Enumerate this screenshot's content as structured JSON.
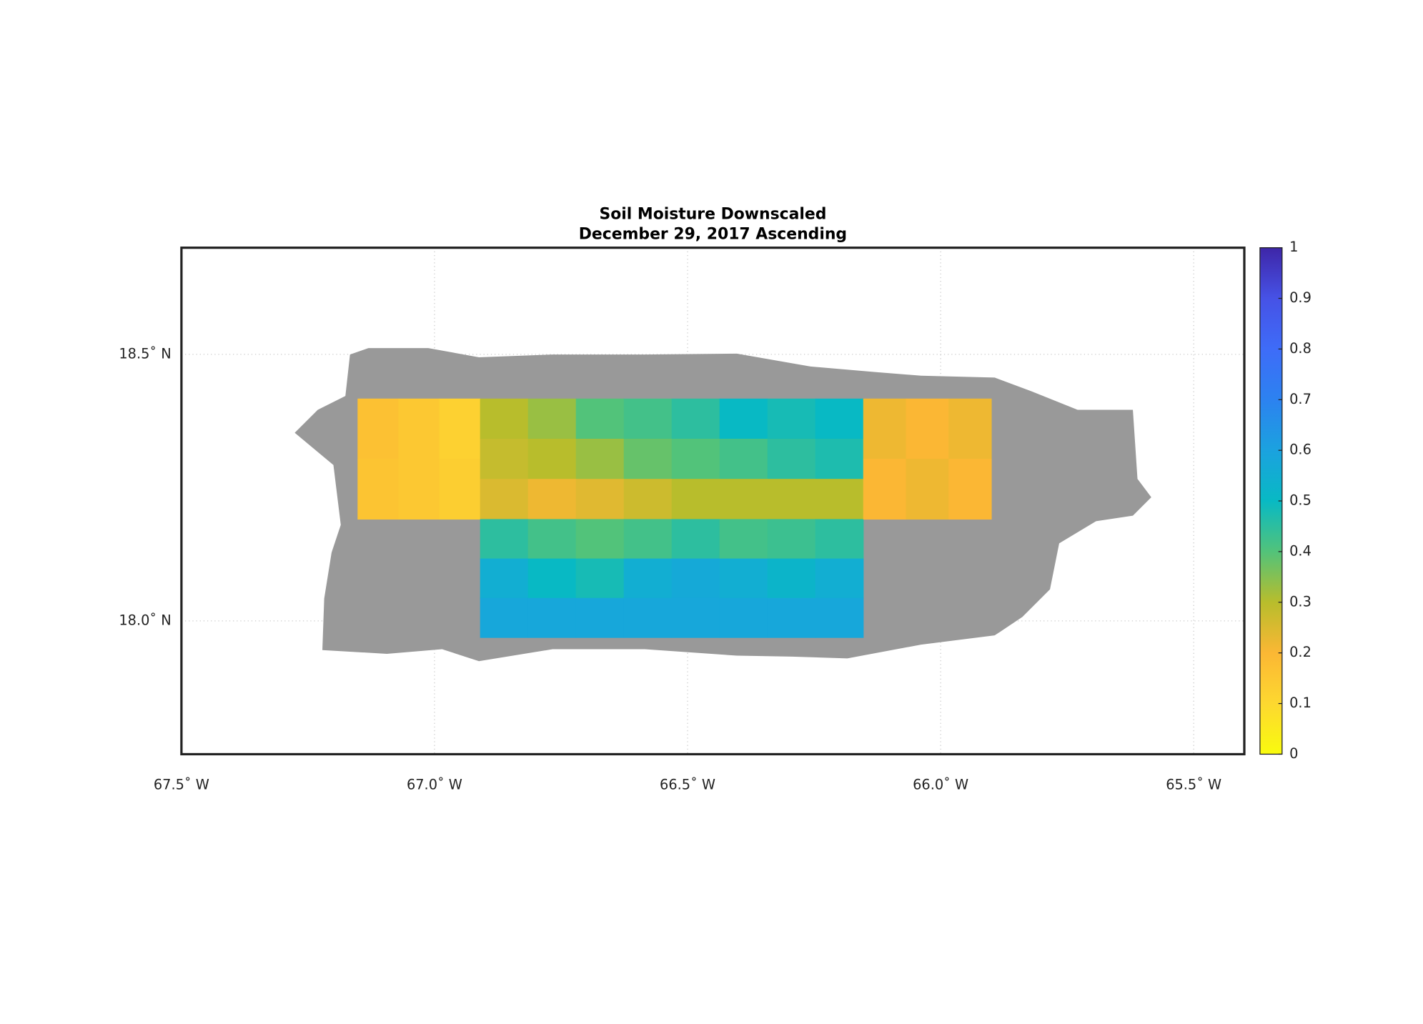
{
  "chart_data": {
    "type": "map",
    "title": "Soil Moisture Downscaled",
    "subtitle": "December 29, 2017 Ascending",
    "xlim": [
      -67.5,
      -65.4
    ],
    "ylim": [
      17.75,
      18.7
    ],
    "xticks": [
      {
        "value": -67.5,
        "label": "67.5˚ W"
      },
      {
        "value": -67.0,
        "label": "67.0˚ W"
      },
      {
        "value": -66.5,
        "label": "66.5˚ W"
      },
      {
        "value": -66.0,
        "label": "66.0˚ W"
      },
      {
        "value": -65.5,
        "label": "65.5˚ W"
      }
    ],
    "yticks": [
      {
        "value": 18.0,
        "label": "18.0˚ N"
      },
      {
        "value": 18.5,
        "label": "18.5˚ N"
      }
    ],
    "grid": true,
    "land_color": "#999999",
    "clim": [
      0,
      1
    ],
    "cticks": [
      0,
      0.1,
      0.2,
      0.3,
      0.4,
      0.5,
      0.6,
      0.7,
      0.8,
      0.9,
      1
    ],
    "colormap": [
      "#f9fb0e",
      "#fdd830",
      "#fbb734",
      "#b8bd2c",
      "#52c37a",
      "#08b9c4",
      "#1ba2df",
      "#2c82f0",
      "#3e6cf8",
      "#4652e6",
      "#3e26a8"
    ],
    "blocks": [
      {
        "lon": [
          -67.152,
          -66.91
        ],
        "lat": [
          18.191,
          18.417
        ],
        "values": [
          [
            0.17,
            0.15,
            0.12
          ],
          [
            0.16,
            0.15,
            0.13
          ]
        ]
      },
      {
        "lon": [
          -66.91,
          -66.153
        ],
        "lat": [
          18.191,
          18.417
        ],
        "values": [
          [
            0.3,
            0.33,
            0.4,
            0.42,
            0.45,
            0.5,
            0.48,
            0.5
          ],
          [
            0.28,
            0.3,
            0.33,
            0.38,
            0.4,
            0.42,
            0.45,
            0.47
          ],
          [
            0.25,
            0.22,
            0.24,
            0.27,
            0.3,
            0.3,
            0.3,
            0.3
          ]
        ]
      },
      {
        "lon": [
          -66.91,
          -66.153
        ],
        "lat": [
          17.969,
          18.191
        ],
        "values": [
          [
            0.45,
            0.42,
            0.4,
            0.42,
            0.45,
            0.42,
            0.43,
            0.45
          ],
          [
            0.55,
            0.5,
            0.48,
            0.55,
            0.57,
            0.55,
            0.52,
            0.55
          ],
          [
            0.58,
            0.58,
            0.58,
            0.58,
            0.58,
            0.58,
            0.58,
            0.58
          ]
        ]
      },
      {
        "lon": [
          -66.153,
          -65.9
        ],
        "lat": [
          18.191,
          18.417
        ],
        "values": [
          [
            0.22,
            0.2,
            0.22
          ],
          [
            0.2,
            0.22,
            0.2
          ]
        ]
      }
    ]
  }
}
